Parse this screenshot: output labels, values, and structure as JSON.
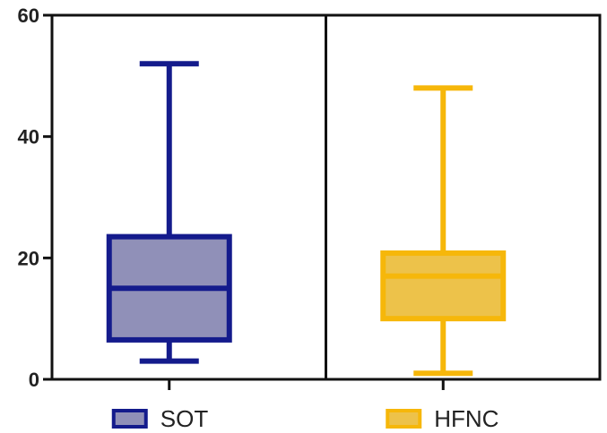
{
  "chart_data": {
    "type": "box",
    "ylim": [
      0,
      60
    ],
    "yticks": [
      0,
      20,
      40,
      60
    ],
    "ytick_labels": [
      "0",
      "20",
      "40",
      "60"
    ],
    "panel_divider": true,
    "legend_placement": "bottom",
    "series": [
      {
        "name": "SOT",
        "min": 3,
        "q1": 6.5,
        "median": 15,
        "q3": 23.5,
        "max": 52,
        "stroke": "#141B8C",
        "fill": "#9090B8"
      },
      {
        "name": "HFNC",
        "min": 1,
        "q1": 10,
        "median": 17,
        "q3": 20.8,
        "max": 48,
        "stroke": "#F6B70A",
        "fill": "#EDC24A"
      }
    ]
  }
}
